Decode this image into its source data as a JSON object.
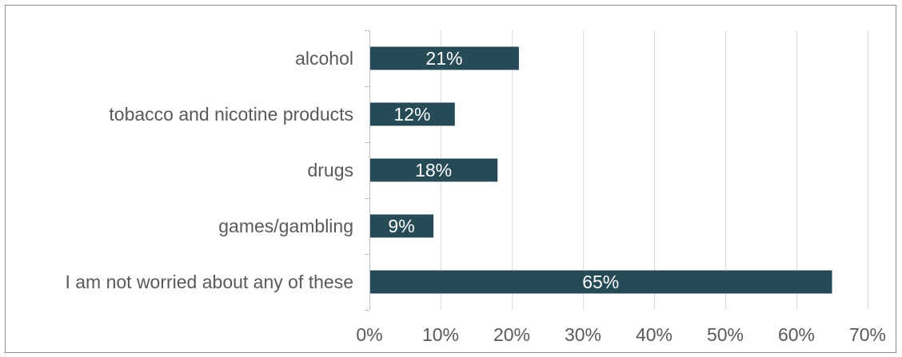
{
  "chart_data": {
    "type": "bar",
    "orientation": "horizontal",
    "categories": [
      "alcohol",
      "tobacco and nicotine products",
      "drugs",
      "games/gambling",
      "I am not worried about any of these"
    ],
    "values": [
      21,
      12,
      18,
      9,
      65
    ],
    "data_labels": [
      "21%",
      "12%",
      "18%",
      "9%",
      "65%"
    ],
    "xlim": [
      0,
      70
    ],
    "x_ticks": [
      0,
      10,
      20,
      30,
      40,
      50,
      60,
      70
    ],
    "x_tick_labels": [
      "0%",
      "10%",
      "20%",
      "30%",
      "40%",
      "50%",
      "60%",
      "70%"
    ],
    "grid": true,
    "bar_color": "#264b57",
    "grid_color": "#d9d9d9",
    "axis_color": "#bfbfbf",
    "text_color": "#595959",
    "data_label_color": "#ffffff"
  }
}
